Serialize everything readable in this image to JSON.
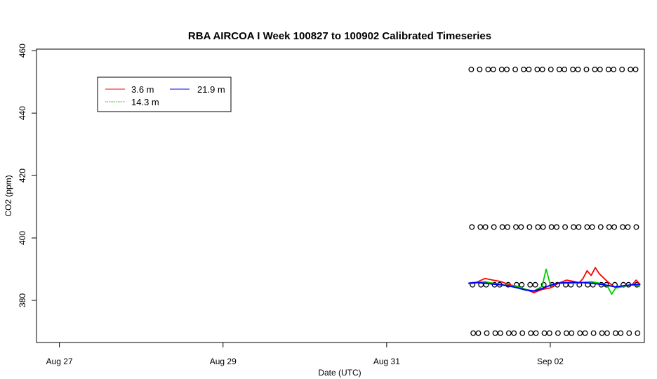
{
  "chart_data": {
    "type": "line",
    "title": "RBA AIRCOA I  Week 100827 to 100902  Calibrated Timeseries",
    "xlabel": "Date (UTC)",
    "ylabel": "CO2 (ppm)",
    "x_ticks": [
      {
        "label": "Aug 27",
        "day": 0
      },
      {
        "label": "Aug 29",
        "day": 2
      },
      {
        "label": "Aug 31",
        "day": 4
      },
      {
        "label": "Sep 02",
        "day": 6
      }
    ],
    "xlim_days": [
      -0.28,
      7.15
    ],
    "ylim": [
      366.5,
      460.5
    ],
    "y_ticks": [
      380,
      400,
      420,
      440,
      460
    ],
    "legend": {
      "placement": "top-left",
      "entries": [
        {
          "name": "3.6 m",
          "color": "#ff0000"
        },
        {
          "name": "14.3 m",
          "color": "#00cc00"
        },
        {
          "name": "21.9 m",
          "color": "#0000ff"
        }
      ]
    },
    "series": [
      {
        "name": "3.6 m",
        "color": "#ff0000",
        "points": [
          [
            5.0,
            385.5
          ],
          [
            5.1,
            385.8
          ],
          [
            5.2,
            387.0
          ],
          [
            5.3,
            386.5
          ],
          [
            5.4,
            386.0
          ],
          [
            5.5,
            385.0
          ],
          [
            5.6,
            384.5
          ],
          [
            5.7,
            383.5
          ],
          [
            5.8,
            382.5
          ],
          [
            5.9,
            383.5
          ],
          [
            6.0,
            384.0
          ],
          [
            6.1,
            385.5
          ],
          [
            6.2,
            386.5
          ],
          [
            6.3,
            386.0
          ],
          [
            6.35,
            385.5
          ],
          [
            6.4,
            387.0
          ],
          [
            6.45,
            389.5
          ],
          [
            6.5,
            388.0
          ],
          [
            6.55,
            390.5
          ],
          [
            6.6,
            388.5
          ],
          [
            6.7,
            386.0
          ],
          [
            6.8,
            384.0
          ],
          [
            6.9,
            384.5
          ],
          [
            7.0,
            385.0
          ],
          [
            7.05,
            386.5
          ],
          [
            7.1,
            385.0
          ]
        ]
      },
      {
        "name": "14.3 m",
        "color": "#00cc00",
        "points": [
          [
            5.0,
            385.3
          ],
          [
            5.2,
            386.0
          ],
          [
            5.4,
            385.0
          ],
          [
            5.6,
            384.5
          ],
          [
            5.7,
            383.5
          ],
          [
            5.8,
            383.0
          ],
          [
            5.9,
            384.5
          ],
          [
            5.95,
            390.0
          ],
          [
            6.0,
            385.0
          ],
          [
            6.1,
            385.5
          ],
          [
            6.3,
            385.5
          ],
          [
            6.5,
            386.0
          ],
          [
            6.6,
            385.5
          ],
          [
            6.7,
            384.5
          ],
          [
            6.75,
            382.0
          ],
          [
            6.8,
            384.0
          ],
          [
            6.9,
            384.5
          ],
          [
            7.0,
            385.0
          ],
          [
            7.1,
            384.5
          ]
        ]
      },
      {
        "name": "21.9 m",
        "color": "#0000ff",
        "points": [
          [
            5.0,
            385.5
          ],
          [
            5.1,
            385.7
          ],
          [
            5.2,
            385.5
          ],
          [
            5.3,
            385.2
          ],
          [
            5.4,
            385.0
          ],
          [
            5.5,
            384.6
          ],
          [
            5.6,
            384.0
          ],
          [
            5.7,
            383.3
          ],
          [
            5.8,
            383.0
          ],
          [
            5.9,
            383.8
          ],
          [
            6.0,
            384.8
          ],
          [
            6.1,
            385.5
          ],
          [
            6.2,
            385.7
          ],
          [
            6.3,
            385.8
          ],
          [
            6.4,
            385.7
          ],
          [
            6.5,
            385.5
          ],
          [
            6.6,
            385.2
          ],
          [
            6.7,
            384.8
          ],
          [
            6.8,
            384.3
          ],
          [
            6.9,
            384.7
          ],
          [
            7.0,
            385.0
          ],
          [
            7.1,
            385.1
          ]
        ]
      }
    ],
    "calibration_points": {
      "marker": "circle",
      "color": "#000000",
      "levels": [
        454,
        403.5,
        385,
        369.5
      ],
      "x_range_days": [
        5.05,
        7.12
      ],
      "spacing_days": 0.087
    }
  }
}
